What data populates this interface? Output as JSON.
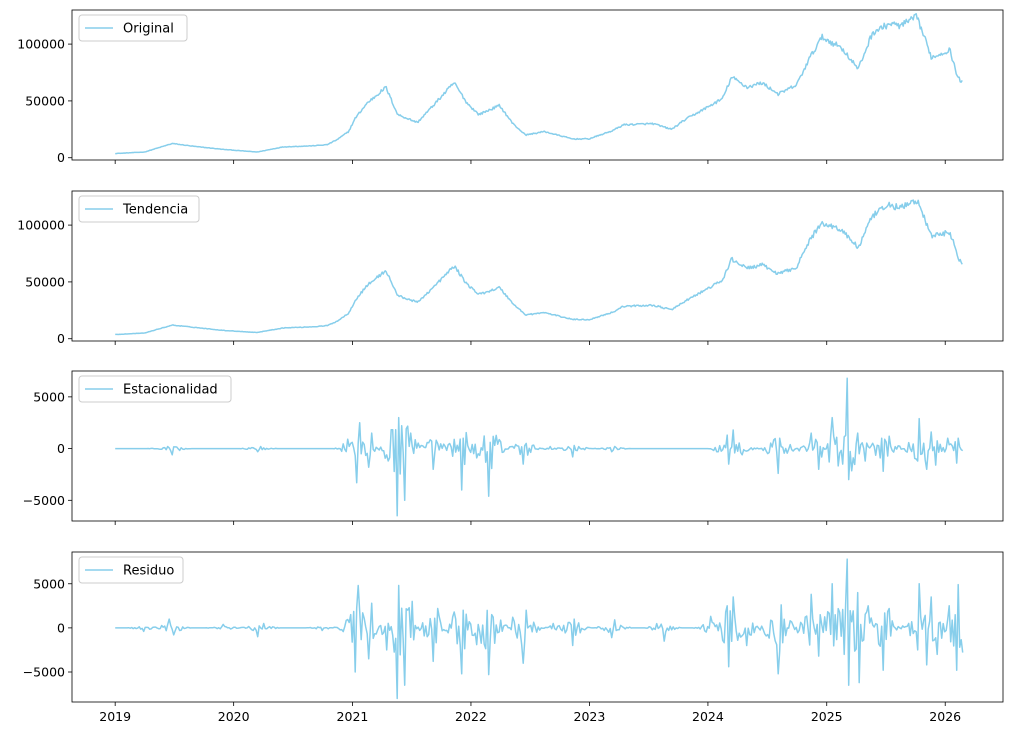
{
  "colors": {
    "series": "#87ceeb",
    "axes": "#000000",
    "legend_border": "#cccccc"
  },
  "x_ticks": [
    "2019",
    "2020",
    "2021",
    "2022",
    "2023",
    "2024",
    "2025",
    "2026"
  ],
  "chart_data": [
    {
      "type": "line",
      "series": [
        {
          "name": "Original",
          "x": [
            "2019-01-01",
            "2019-04-01",
            "2019-06-26",
            "2019-09-01",
            "2019-12-01",
            "2020-03-13",
            "2020-06-01",
            "2020-09-01",
            "2020-10-15",
            "2020-11-15",
            "2020-12-20",
            "2021-01-10",
            "2021-02-15",
            "2021-04-14",
            "2021-05-20",
            "2021-07-20",
            "2021-09-10",
            "2021-11-10",
            "2021-12-20",
            "2022-01-25",
            "2022-03-30",
            "2022-05-10",
            "2022-06-18",
            "2022-08-15",
            "2022-11-10",
            "2022-12-31",
            "2023-03-15",
            "2023-04-15",
            "2023-07-15",
            "2023-09-11",
            "2023-10-25",
            "2023-12-15",
            "2024-02-15",
            "2024-03-14",
            "2024-05-01",
            "2024-06-15",
            "2024-08-05",
            "2024-09-30",
            "2024-11-10",
            "2024-12-17",
            "2025-02-15",
            "2025-04-08",
            "2025-05-22",
            "2025-07-14",
            "2025-08-15",
            "2025-10-06",
            "2025-11-20",
            "2026-01-15",
            "2026-02-01",
            "2026-02-10",
            "2026-02-25"
          ],
          "values": [
            3700,
            5000,
            12500,
            10000,
            7300,
            5000,
            9500,
            10500,
            11500,
            16000,
            23000,
            35000,
            48000,
            62000,
            38000,
            31000,
            47000,
            66000,
            48000,
            38000,
            46000,
            30000,
            20000,
            23000,
            16500,
            16600,
            24000,
            29000,
            30000,
            25000,
            34000,
            42000,
            52000,
            71000,
            62000,
            66000,
            56000,
            64000,
            88000,
            106000,
            97000,
            78000,
            110000,
            118000,
            116000,
            124000,
            88000,
            95000,
            78000,
            70000,
            66000
          ]
        }
      ],
      "xlim": [
        "2018-08-21",
        "2026-06-28"
      ],
      "ylim": [
        -2000,
        130000
      ],
      "yticks": [
        0,
        50000,
        100000
      ],
      "legend": "top-left"
    },
    {
      "type": "line",
      "series": [
        {
          "name": "Tendencia",
          "x": [
            "2019-01-01",
            "2019-04-01",
            "2019-06-26",
            "2019-09-01",
            "2019-12-01",
            "2020-03-13",
            "2020-06-01",
            "2020-09-01",
            "2020-10-15",
            "2020-11-15",
            "2020-12-20",
            "2021-01-10",
            "2021-02-15",
            "2021-04-14",
            "2021-05-20",
            "2021-07-20",
            "2021-09-10",
            "2021-11-10",
            "2021-12-20",
            "2022-01-25",
            "2022-03-30",
            "2022-05-10",
            "2022-06-18",
            "2022-08-15",
            "2022-11-10",
            "2022-12-31",
            "2023-03-15",
            "2023-04-15",
            "2023-07-15",
            "2023-09-11",
            "2023-10-25",
            "2023-12-15",
            "2024-02-15",
            "2024-03-14",
            "2024-05-01",
            "2024-06-15",
            "2024-08-05",
            "2024-09-30",
            "2024-11-10",
            "2024-12-17",
            "2025-02-15",
            "2025-04-08",
            "2025-05-22",
            "2025-07-14",
            "2025-08-15",
            "2025-10-06",
            "2025-11-20",
            "2026-01-15",
            "2026-02-01",
            "2026-02-10",
            "2026-02-25"
          ],
          "values": [
            3700,
            5000,
            12000,
            10000,
            7300,
            5500,
            9500,
            10500,
            11500,
            15500,
            22500,
            34000,
            47000,
            60000,
            38000,
            32000,
            46000,
            64000,
            48000,
            39000,
            45000,
            31000,
            21000,
            23000,
            17000,
            16800,
            23500,
            28500,
            29500,
            25500,
            33500,
            41500,
            51500,
            70000,
            62000,
            65000,
            57000,
            63000,
            87000,
            102000,
            96000,
            80000,
            108000,
            118000,
            115000,
            122000,
            90000,
            94000,
            80000,
            70000,
            66000
          ]
        }
      ],
      "xlim": [
        "2018-08-21",
        "2026-06-28"
      ],
      "ylim": [
        -2000,
        130000
      ],
      "yticks": [
        0,
        50000,
        100000
      ],
      "legend": "top-left"
    },
    {
      "type": "line",
      "series": [
        {
          "name": "Estacionalidad",
          "x": [
            "2019-01-01",
            "2019-06-01",
            "2019-06-26",
            "2019-07-10",
            "2020-01-01",
            "2020-03-13",
            "2020-03-25",
            "2020-10-01",
            "2020-12-25",
            "2021-01-12",
            "2021-01-25",
            "2021-02-20",
            "2021-03-01",
            "2021-04-20",
            "2021-05-19",
            "2021-05-25",
            "2021-06-10",
            "2021-07-01",
            "2021-09-07",
            "2021-09-15",
            "2021-12-04",
            "2021-12-10",
            "2022-01-20",
            "2022-02-24",
            "2022-03-01",
            "2022-05-10",
            "2022-06-13",
            "2022-06-20",
            "2022-09-01",
            "2022-11-09",
            "2022-11-15",
            "2023-03-10",
            "2023-03-20",
            "2023-10-24",
            "2024-02-28",
            "2024-03-05",
            "2024-03-20",
            "2024-04-15",
            "2024-08-05",
            "2024-08-10",
            "2024-11-12",
            "2024-12-05",
            "2025-01-20",
            "2025-02-20",
            "2025-03-03",
            "2025-03-08",
            "2025-04-07",
            "2025-05-01",
            "2025-06-22",
            "2025-07-14",
            "2025-10-10",
            "2025-10-15",
            "2025-11-05",
            "2025-11-20",
            "2025-12-01",
            "2026-01-10",
            "2026-02-05",
            "2026-02-10",
            "2026-02-25"
          ],
          "values": [
            0,
            100,
            -600,
            150,
            0,
            -300,
            200,
            0,
            500,
            -3300,
            2500,
            -1800,
            1500,
            -1200,
            -6500,
            3000,
            -5000,
            1500,
            -2000,
            800,
            -4000,
            1000,
            -900,
            -4600,
            600,
            200,
            -1500,
            500,
            200,
            -800,
            300,
            -300,
            200,
            0,
            1300,
            -1500,
            1800,
            -600,
            -2400,
            1000,
            1500,
            -2000,
            3000,
            -1500,
            6800,
            -3000,
            1500,
            -1200,
            -2200,
            1200,
            -1200,
            2900,
            -2000,
            1600,
            -1600,
            1000,
            -1400,
            1000,
            -200
          ]
        }
      ],
      "xlim": [
        "2018-08-21",
        "2026-06-28"
      ],
      "ylim": [
        -7000,
        7500
      ],
      "yticks": [
        -5000,
        0,
        5000
      ],
      "legend": "top-left"
    },
    {
      "type": "line",
      "series": [
        {
          "name": "Residuo",
          "x": [
            "2019-01-01",
            "2019-04-01",
            "2019-06-15",
            "2019-07-01",
            "2019-12-01",
            "2020-03-13",
            "2020-04-01",
            "2020-10-01",
            "2020-12-25",
            "2021-01-11",
            "2021-01-20",
            "2021-02-20",
            "2021-03-01",
            "2021-04-18",
            "2021-05-19",
            "2021-05-24",
            "2021-06-10",
            "2021-07-05",
            "2021-09-07",
            "2021-09-20",
            "2021-11-10",
            "2021-12-04",
            "2021-12-10",
            "2022-01-20",
            "2022-02-24",
            "2022-03-05",
            "2022-05-09",
            "2022-06-13",
            "2022-06-20",
            "2022-09-10",
            "2022-11-09",
            "2022-11-15",
            "2023-03-10",
            "2023-03-20",
            "2023-08-17",
            "2024-01-11",
            "2024-02-28",
            "2024-03-05",
            "2024-03-19",
            "2024-05-01",
            "2024-08-05",
            "2024-08-12",
            "2024-11-12",
            "2024-12-05",
            "2025-01-20",
            "2025-02-25",
            "2025-03-03",
            "2025-03-10",
            "2025-04-07",
            "2025-04-09",
            "2025-05-10",
            "2025-06-22",
            "2025-07-14",
            "2025-10-10",
            "2025-10-15",
            "2025-11-05",
            "2025-11-20",
            "2025-12-05",
            "2026-01-14",
            "2026-02-05",
            "2026-02-10",
            "2026-02-25"
          ],
          "values": [
            0,
            -400,
            1000,
            -800,
            400,
            -1000,
            500,
            -300,
            1500,
            -5000,
            4800,
            -3500,
            2800,
            -2500,
            -8000,
            4800,
            -6500,
            3000,
            -3800,
            2200,
            1800,
            -5200,
            2000,
            -1900,
            -5300,
            1500,
            1200,
            -4000,
            2000,
            500,
            -2000,
            1000,
            -1100,
            900,
            -1500,
            1300,
            2500,
            -4400,
            3500,
            -2000,
            -5200,
            2600,
            3800,
            -3200,
            5000,
            -3000,
            7800,
            -6500,
            4000,
            -6200,
            2500,
            -4800,
            2200,
            -2500,
            5000,
            -4200,
            3500,
            -3000,
            2500,
            -4800,
            4900,
            -2800
          ]
        }
      ],
      "xlim": [
        "2018-08-21",
        "2026-06-28"
      ],
      "ylim": [
        -8400,
        8600
      ],
      "yticks": [
        -5000,
        0,
        5000
      ],
      "legend": "top-left"
    }
  ]
}
